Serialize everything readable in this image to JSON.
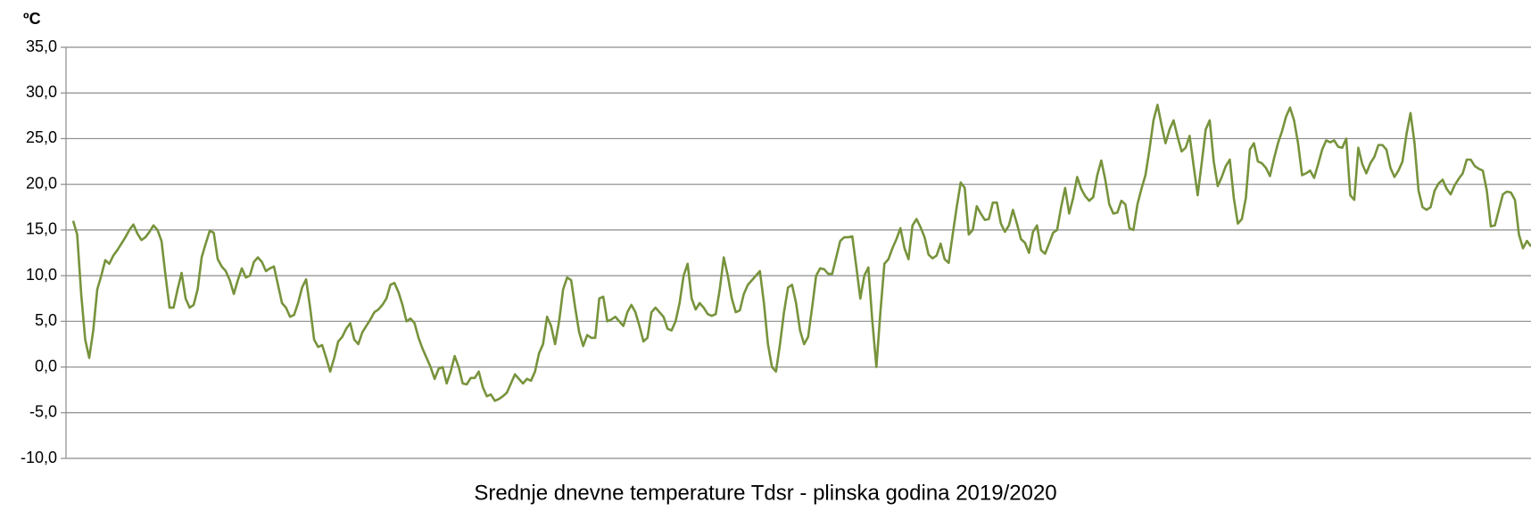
{
  "chart_data": {
    "type": "line",
    "title": "Srednje dnevne temperature Tdsr - plinska godina 2019/2020",
    "y_label": "ºC",
    "color": "#77933c",
    "grid": true,
    "ylim": [
      -10,
      35
    ],
    "yticks": [
      {
        "value": -10,
        "label": "-10,0"
      },
      {
        "value": -5,
        "label": "-5,0"
      },
      {
        "value": 0,
        "label": "0,0"
      },
      {
        "value": 5,
        "label": "5,0"
      },
      {
        "value": 10,
        "label": "10,0"
      },
      {
        "value": 15,
        "label": "15,0"
      },
      {
        "value": 20,
        "label": "20,0"
      },
      {
        "value": 25,
        "label": "25,0"
      },
      {
        "value": 30,
        "label": "30,0"
      },
      {
        "value": 35,
        "label": "35,0"
      }
    ],
    "values": [
      16,
      14.5,
      8,
      3,
      1,
      4,
      8.5,
      10,
      11.7,
      11.3,
      12.2,
      12.8,
      13.5,
      14.2,
      15,
      15.6,
      14.6,
      13.9,
      14.2,
      14.8,
      15.5,
      15,
      13.8,
      10,
      6.5,
      6.5,
      8.5,
      10.3,
      7.5,
      6.5,
      6.8,
      8.5,
      12,
      13.5,
      14.9,
      14.7,
      11.8,
      11,
      10.5,
      9.5,
      8,
      9.5,
      10.8,
      9.8,
      10,
      11.5,
      12,
      11.5,
      10.5,
      10.8,
      11,
      9,
      7,
      6.5,
      5.5,
      5.7,
      7,
      8.7,
      9.6,
      6.5,
      3,
      2.2,
      2.4,
      1,
      -0.5,
      1,
      2.8,
      3.3,
      4.2,
      4.8,
      3,
      2.5,
      3.8,
      4.5,
      5.2,
      6,
      6.3,
      6.8,
      7.5,
      9,
      9.2,
      8.2,
      6.8,
      5,
      5.3,
      4.8,
      3.2,
      2,
      1,
      0,
      -1.3,
      -0.2,
      0,
      -1.8,
      -0.5,
      1.2,
      0,
      -1.8,
      -1.9,
      -1.2,
      -1.2,
      -0.5,
      -2.2,
      -3.2,
      -3,
      -3.7,
      -3.5,
      -3.2,
      -2.8,
      -1.8,
      -0.8,
      -1.3,
      -1.8,
      -1.3,
      -1.5,
      -0.5,
      1.5,
      2.5,
      5.5,
      4.5,
      2.5,
      5,
      8.5,
      9.8,
      9.5,
      6.5,
      3.8,
      2.3,
      3.5,
      3.2,
      3.2,
      7.5,
      7.7,
      5,
      5.2,
      5.5,
      5,
      4.5,
      6,
      6.8,
      6,
      4.5,
      2.8,
      3.2,
      6,
      6.5,
      6,
      5.5,
      4.2,
      4,
      5,
      7,
      10,
      11.3,
      7.5,
      6.3,
      7,
      6.5,
      5.8,
      5.6,
      5.8,
      8.5,
      12,
      10,
      7.5,
      6,
      6.2,
      8,
      9,
      9.5,
      10,
      10.5,
      7,
      2.5,
      0,
      -0.5,
      2.5,
      6,
      8.7,
      9,
      7,
      4,
      2.5,
      3.3,
      6.5,
      10,
      10.8,
      10.7,
      10.2,
      10.2,
      12,
      13.8,
      14.2,
      14.2,
      14.3,
      11,
      7.5,
      10,
      10.9,
      5,
      0,
      6,
      11.3,
      11.8,
      13,
      14,
      15.2,
      13,
      11.8,
      15.5,
      16.2,
      15.3,
      14.2,
      12.3,
      11.9,
      12.2,
      13.5,
      11.8,
      11.4,
      14.5,
      17.5,
      20.2,
      19.6,
      14.5,
      15,
      17.6,
      16.8,
      16.1,
      16.2,
      18,
      18,
      15.7,
      14.8,
      15.5,
      17.2,
      15.7,
      14,
      13.6,
      12.5,
      14.8,
      15.5,
      12.8,
      12.4,
      13.5,
      14.7,
      15,
      17.5,
      19.6,
      16.8,
      18.5,
      20.8,
      19.5,
      18.7,
      18.2,
      18.6,
      21,
      22.6,
      20.5,
      17.8,
      16.8,
      16.9,
      18.2,
      17.8,
      15.2,
      15,
      17.8,
      19.5,
      21,
      23.8,
      27,
      28.7,
      26.5,
      24.5,
      26,
      27,
      25.2,
      23.6,
      24,
      25.3,
      22,
      18.8,
      22.3,
      26,
      27,
      22.5,
      19.8,
      20.8,
      22,
      22.7,
      18.5,
      15.7,
      16.2,
      18.5,
      23.8,
      24.5,
      22.5,
      22.3,
      21.8,
      20.9,
      22.8,
      24.5,
      25.8,
      27.4,
      28.4,
      27,
      24.5,
      21,
      21.2,
      21.5,
      20.7,
      22.2,
      23.8,
      24.8,
      24.6,
      24.8,
      24.1,
      24,
      25,
      18.8,
      18.3,
      24,
      22.2,
      21.2,
      22.3,
      23,
      24.3,
      24.3,
      23.8,
      21.8,
      20.8,
      21.5,
      22.5,
      25.5,
      27.8,
      24.5,
      19.3,
      17.5,
      17.2,
      17.5,
      19.3,
      20.1,
      20.5,
      19.5,
      18.9,
      19.9,
      20.6,
      21.2,
      22.7,
      22.7,
      22,
      21.7,
      21.5,
      19.3,
      15.4,
      15.5,
      17.2,
      18.9,
      19.2,
      19.1,
      18.3,
      14.5,
      13,
      13.8,
      13.2
    ]
  }
}
